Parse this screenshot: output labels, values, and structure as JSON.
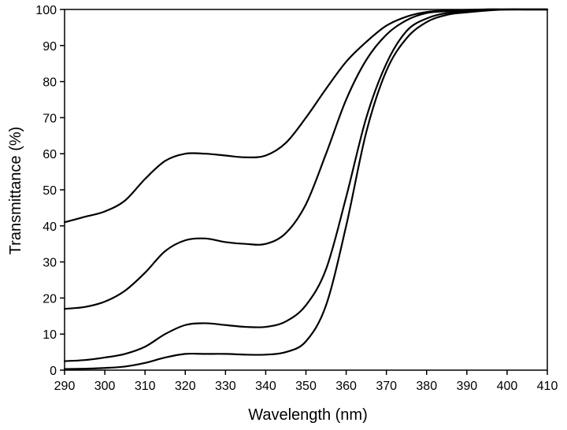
{
  "chart_data": {
    "type": "line",
    "title": "",
    "xlabel": "Wavelength (nm)",
    "ylabel": "Transmittance (%)",
    "xlim": [
      290,
      410
    ],
    "ylim": [
      0,
      100
    ],
    "x_ticks": [
      290,
      300,
      310,
      320,
      330,
      340,
      350,
      360,
      370,
      380,
      390,
      400,
      410
    ],
    "x_tick_labels": [
      "290",
      "300",
      "310",
      "320",
      "330",
      "340",
      "350",
      "360",
      "370",
      "380",
      "390",
      "400",
      "410"
    ],
    "y_ticks": [
      0,
      10,
      20,
      30,
      40,
      50,
      60,
      70,
      80,
      90,
      100
    ],
    "y_tick_labels": [
      "0",
      "10",
      "20",
      "30",
      "40",
      "50",
      "60",
      "70",
      "80",
      "90",
      "100"
    ],
    "grid": false,
    "legend": "none",
    "line_color": "#000000",
    "series": [
      {
        "x": [
          290,
          295,
          300,
          305,
          310,
          315,
          320,
          325,
          330,
          335,
          340,
          345,
          350,
          355,
          360,
          365,
          370,
          375,
          380,
          385,
          390,
          395,
          400,
          405,
          410
        ],
        "values": [
          41,
          42.5,
          44,
          47,
          53,
          58,
          60,
          60,
          59.5,
          59,
          59.5,
          63,
          70,
          78,
          85.5,
          91,
          95.5,
          98,
          99.3,
          99.7,
          99.9,
          100,
          100,
          100,
          100
        ]
      },
      {
        "x": [
          290,
          295,
          300,
          305,
          310,
          315,
          320,
          325,
          330,
          335,
          340,
          345,
          350,
          355,
          360,
          365,
          370,
          375,
          380,
          385,
          390,
          395,
          400,
          405,
          410
        ],
        "values": [
          17,
          17.5,
          19,
          22,
          27,
          33,
          36,
          36.5,
          35.5,
          35,
          35,
          38,
          46,
          60,
          75,
          86,
          93,
          97,
          99,
          99.5,
          99.8,
          100,
          100,
          100,
          100
        ]
      },
      {
        "x": [
          290,
          295,
          300,
          305,
          310,
          315,
          320,
          325,
          330,
          335,
          340,
          345,
          350,
          355,
          360,
          365,
          370,
          375,
          380,
          385,
          390,
          395,
          400,
          405,
          410
        ],
        "values": [
          2.5,
          2.8,
          3.5,
          4.5,
          6.5,
          10,
          12.5,
          13,
          12.5,
          12,
          12,
          13.5,
          18,
          28,
          48,
          70,
          85,
          94,
          97.5,
          99,
          99.5,
          100,
          100,
          100,
          100
        ]
      },
      {
        "x": [
          290,
          295,
          300,
          305,
          310,
          315,
          320,
          325,
          330,
          335,
          340,
          345,
          350,
          355,
          360,
          365,
          370,
          375,
          380,
          385,
          390,
          395,
          400,
          405,
          410
        ],
        "values": [
          0.3,
          0.4,
          0.6,
          1,
          2,
          3.5,
          4.5,
          4.5,
          4.5,
          4.3,
          4.3,
          5,
          8,
          18,
          40,
          66,
          83,
          92,
          96.5,
          98.5,
          99.2,
          99.7,
          100,
          100,
          100
        ]
      }
    ]
  }
}
